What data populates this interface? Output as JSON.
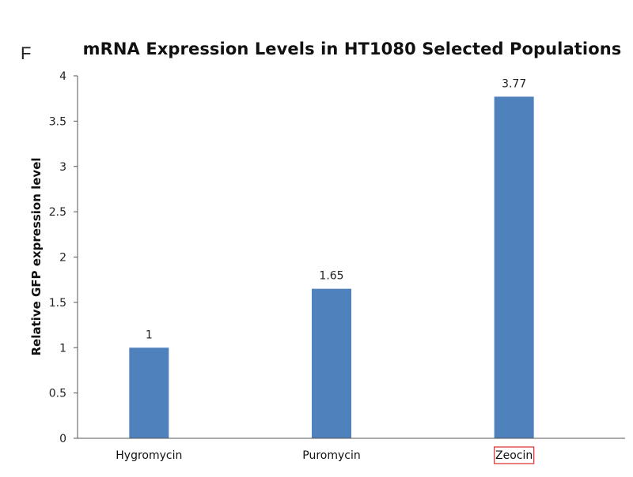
{
  "panel_label": "F",
  "chart_data": {
    "type": "bar",
    "title": "mRNA Expression Levels in HT1080 Selected Populations",
    "xlabel": "",
    "ylabel": "Relative GFP expression level",
    "categories": [
      "Hygromycin",
      "Puromycin",
      "Zeocin"
    ],
    "values": [
      1,
      1.65,
      3.77
    ],
    "data_labels": [
      "1",
      "1.65",
      "3.77"
    ],
    "ylim": [
      0,
      4
    ],
    "yticks": [
      "0",
      "0.5",
      "1",
      "1.5",
      "2",
      "2.5",
      "3",
      "3.5",
      "4"
    ],
    "grid": false,
    "legend": "none",
    "highlighted_category": "Zeocin",
    "colors": {
      "bar": "#4f81bd",
      "axis": "#555555",
      "highlight_box": "#e03a3a"
    }
  }
}
